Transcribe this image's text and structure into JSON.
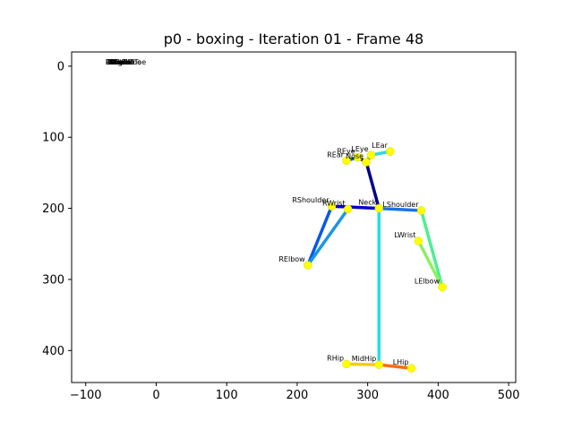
{
  "chart_data": {
    "type": "scatter",
    "title": "p0 - boxing - Iteration 01 - Frame 48",
    "xlabel": "",
    "ylabel": "",
    "xlim": [
      -120,
      510
    ],
    "ylim": [
      445,
      -20
    ],
    "y_inverted": true,
    "grid": false,
    "x_ticks": [
      -100,
      0,
      100,
      200,
      300,
      400,
      500
    ],
    "y_ticks": [
      0,
      100,
      200,
      300,
      400
    ],
    "keypoint_color": "#ffff00",
    "keypoints": [
      {
        "name": "Nose",
        "x": 298,
        "y": 135
      },
      {
        "name": "Neck",
        "x": 316,
        "y": 200
      },
      {
        "name": "RShoulder",
        "x": 249,
        "y": 197
      },
      {
        "name": "RElbow",
        "x": 215,
        "y": 280
      },
      {
        "name": "RWrist",
        "x": 272,
        "y": 201
      },
      {
        "name": "LShoulder",
        "x": 376,
        "y": 203
      },
      {
        "name": "LElbow",
        "x": 406,
        "y": 311
      },
      {
        "name": "LWrist",
        "x": 372,
        "y": 246
      },
      {
        "name": "MidHip",
        "x": 316,
        "y": 420
      },
      {
        "name": "RHip",
        "x": 270,
        "y": 419
      },
      {
        "name": "LHip",
        "x": 362,
        "y": 425
      },
      {
        "name": "REye",
        "x": 286,
        "y": 128
      },
      {
        "name": "LEye",
        "x": 305,
        "y": 125
      },
      {
        "name": "REar",
        "x": 270,
        "y": 133
      },
      {
        "name": "LEar",
        "x": 332,
        "y": 120
      }
    ],
    "skeleton": [
      {
        "from": "Neck",
        "to": "Nose",
        "color": "#00008b"
      },
      {
        "from": "Neck",
        "to": "RShoulder",
        "color": "#0000cd"
      },
      {
        "from": "RShoulder",
        "to": "RElbow",
        "color": "#0a58e6"
      },
      {
        "from": "RElbow",
        "to": "RWrist",
        "color": "#1a96e6"
      },
      {
        "from": "Neck",
        "to": "LShoulder",
        "color": "#1a73e8"
      },
      {
        "from": "LShoulder",
        "to": "LElbow",
        "color": "#4cf090"
      },
      {
        "from": "LElbow",
        "to": "LWrist",
        "color": "#8cf060"
      },
      {
        "from": "Neck",
        "to": "MidHip",
        "color": "#26e0e0"
      },
      {
        "from": "MidHip",
        "to": "RHip",
        "color": "#f0d000"
      },
      {
        "from": "MidHip",
        "to": "LHip",
        "color": "#ff6a10"
      },
      {
        "from": "Nose",
        "to": "REye",
        "color": "#00304a"
      },
      {
        "from": "REye",
        "to": "REar",
        "color": "#0a6478"
      },
      {
        "from": "Nose",
        "to": "LEye",
        "color": "#0a5a8c"
      },
      {
        "from": "LEye",
        "to": "LEar",
        "color": "#30d8e8"
      }
    ],
    "stray_labels": [
      "LSmallToe",
      "LBigToe",
      "RSmallToe",
      "RBigToe",
      "LHeel",
      "RHeel",
      "LAnkle",
      "RAnkle",
      "LKnee",
      "RKnee"
    ]
  }
}
